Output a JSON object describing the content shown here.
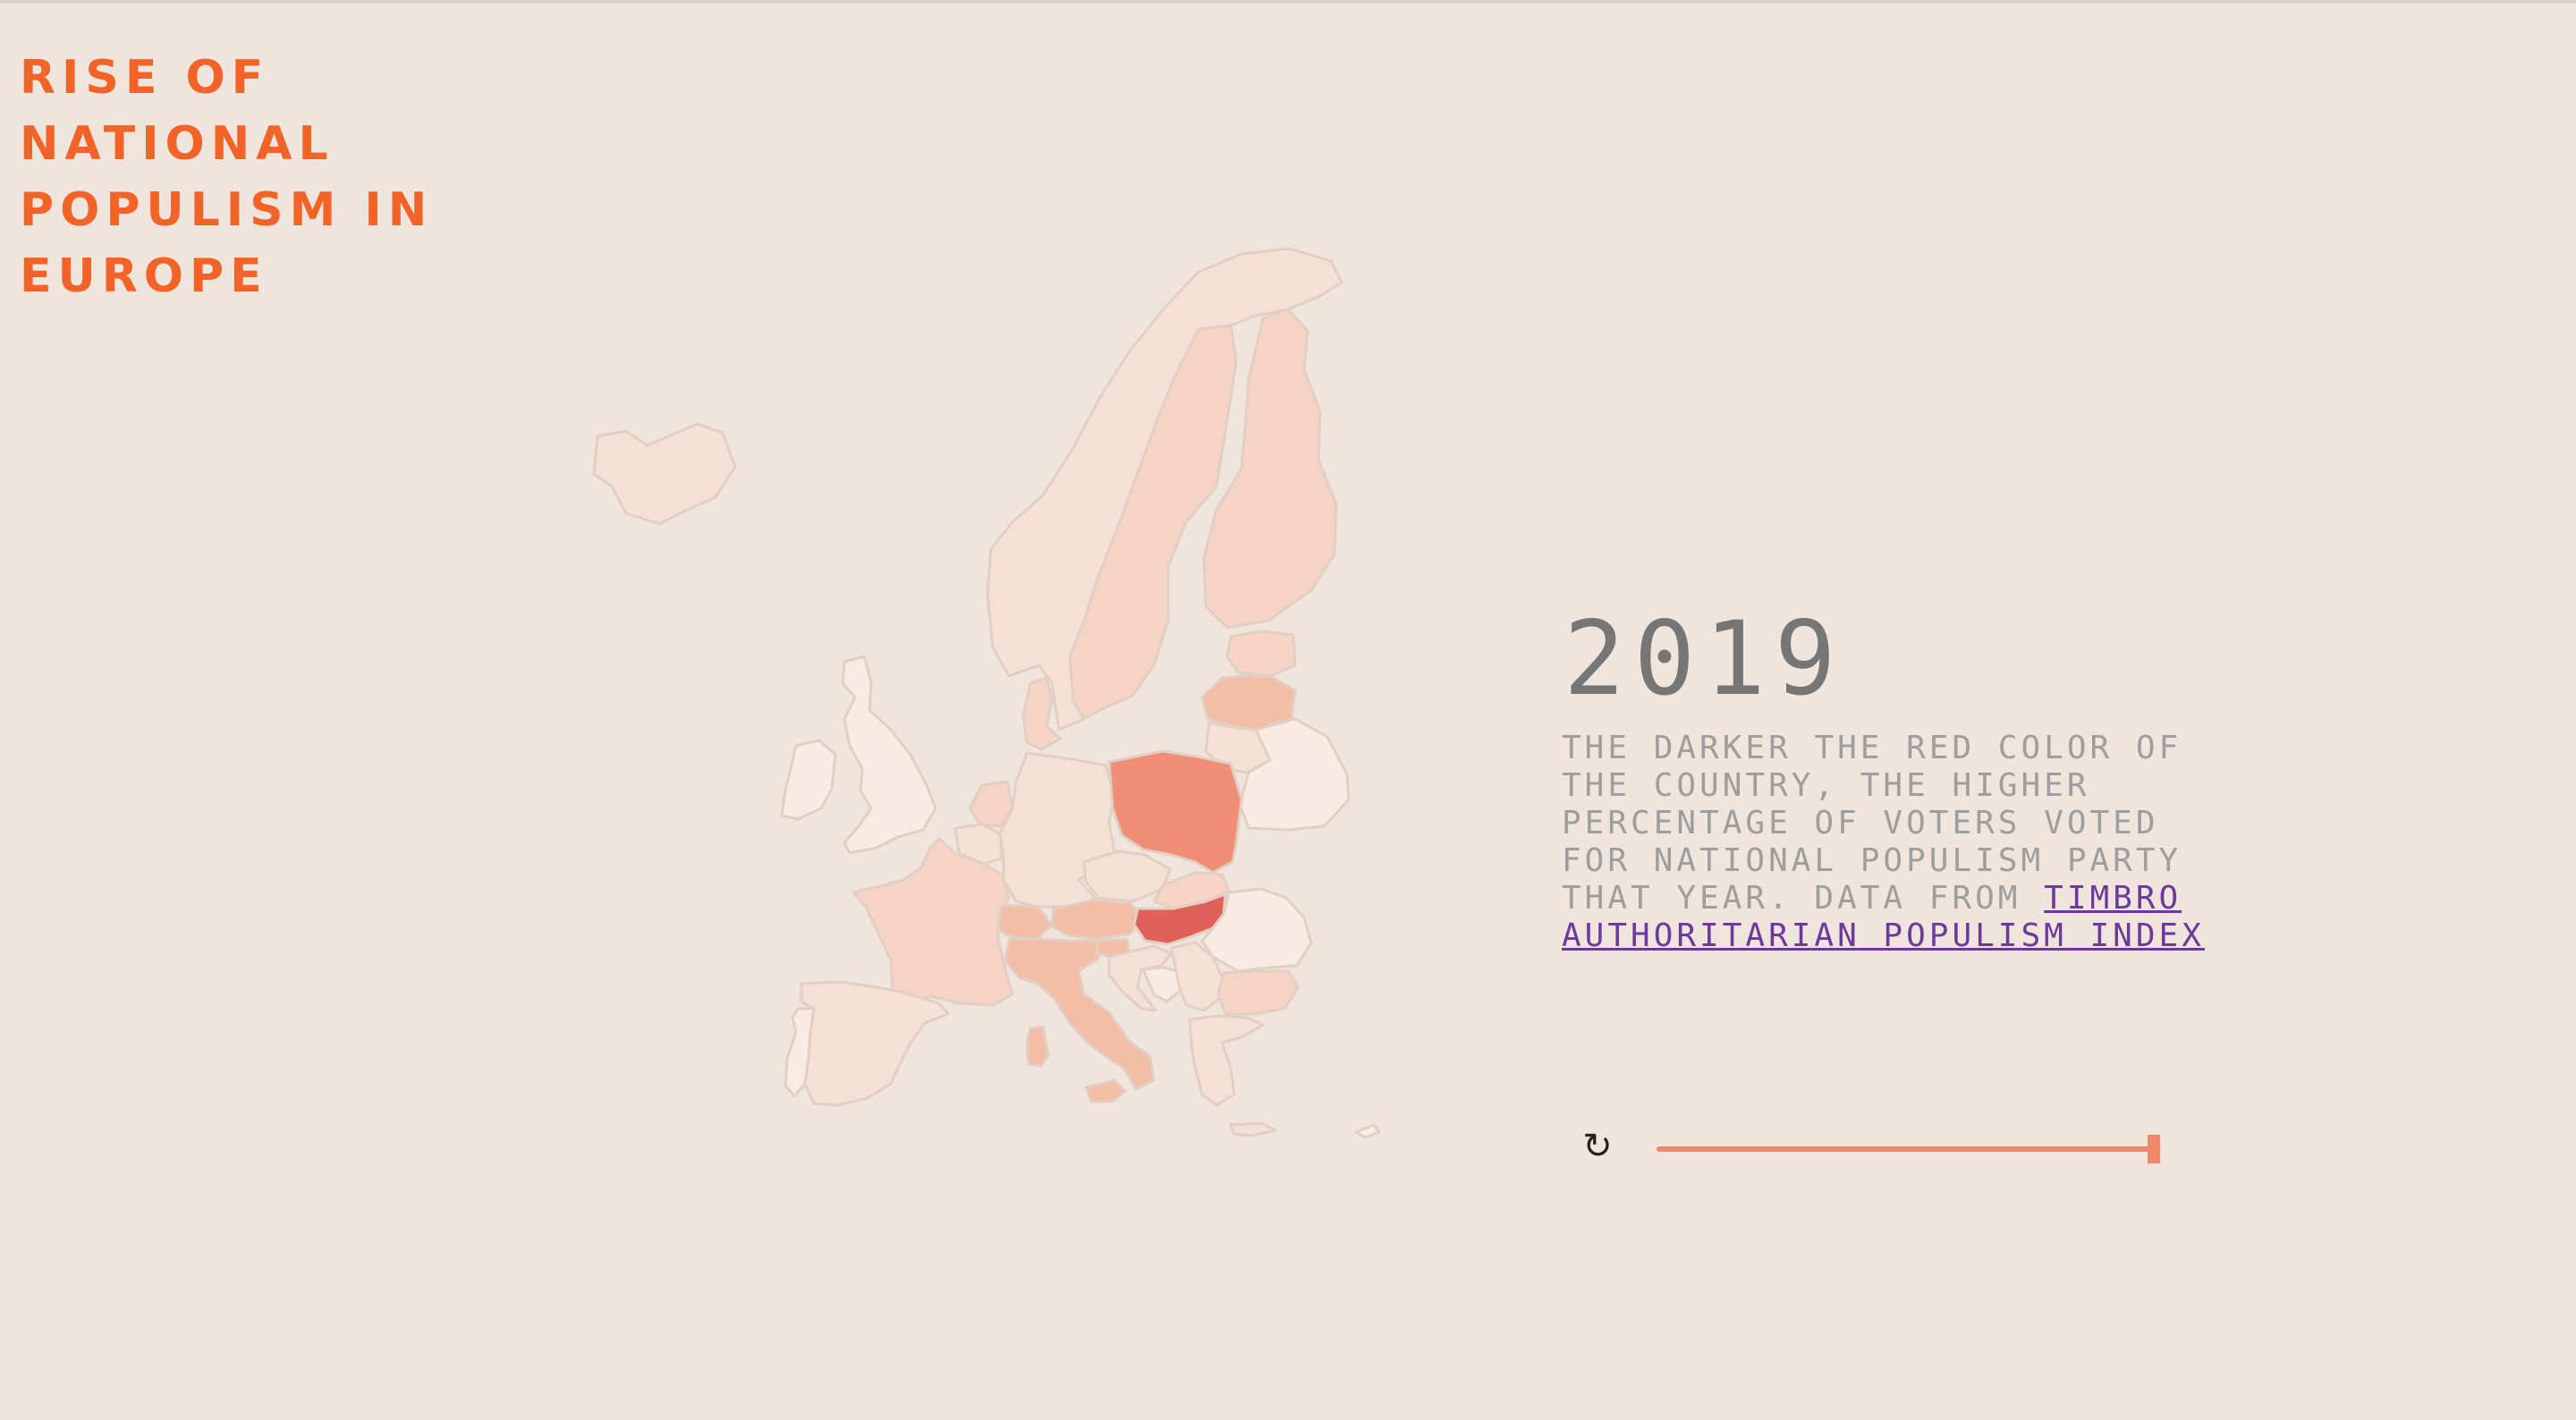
{
  "header": {
    "title": "Rise of national populism in Europe"
  },
  "year": "2019",
  "description": {
    "text": "The darker the red color of the country, the higher percentage of voters voted for national populism party that year. Data from ",
    "link_label": "Timbro Authoritarian Populism Index"
  },
  "controls": {
    "replay_icon": "replay-icon",
    "slider_value_fraction": 1.0
  },
  "colors": {
    "background": "#efe5dc",
    "title": "#f26328",
    "accent": "#f1886a",
    "link": "#6d3a9c",
    "scale": [
      "#f7ebe4",
      "#f6e0d6",
      "#f5d4c6",
      "#f3bda7",
      "#f08e76",
      "#e0605a"
    ]
  },
  "map": {
    "countries": [
      {
        "name": "Iceland",
        "level": 1
      },
      {
        "name": "Norway",
        "level": 1
      },
      {
        "name": "Sweden",
        "level": 2
      },
      {
        "name": "Finland",
        "level": 2
      },
      {
        "name": "Estonia",
        "level": 2
      },
      {
        "name": "Latvia",
        "level": 3
      },
      {
        "name": "Lithuania",
        "level": 1
      },
      {
        "name": "Belarus",
        "level": 0
      },
      {
        "name": "Denmark",
        "level": 2
      },
      {
        "name": "United Kingdom",
        "level": 0
      },
      {
        "name": "Ireland",
        "level": 0
      },
      {
        "name": "Netherlands",
        "level": 2
      },
      {
        "name": "Belgium",
        "level": 1
      },
      {
        "name": "Germany",
        "level": 1
      },
      {
        "name": "Poland",
        "level": 4
      },
      {
        "name": "France",
        "level": 2
      },
      {
        "name": "Switzerland",
        "level": 3
      },
      {
        "name": "Austria",
        "level": 3
      },
      {
        "name": "Czechia",
        "level": 1
      },
      {
        "name": "Slovakia",
        "level": 2
      },
      {
        "name": "Hungary",
        "level": 5
      },
      {
        "name": "Romania",
        "level": 0
      },
      {
        "name": "Italy",
        "level": 3
      },
      {
        "name": "Slovenia",
        "level": 3
      },
      {
        "name": "Croatia",
        "level": 1
      },
      {
        "name": "Serbia",
        "level": 1
      },
      {
        "name": "Bosnia",
        "level": 0
      },
      {
        "name": "Bulgaria",
        "level": 2
      },
      {
        "name": "Greece",
        "level": 1
      },
      {
        "name": "Spain",
        "level": 1
      },
      {
        "name": "Portugal",
        "level": 0
      },
      {
        "name": "Sardinia",
        "level": 3
      },
      {
        "name": "Sicily",
        "level": 3
      }
    ]
  }
}
